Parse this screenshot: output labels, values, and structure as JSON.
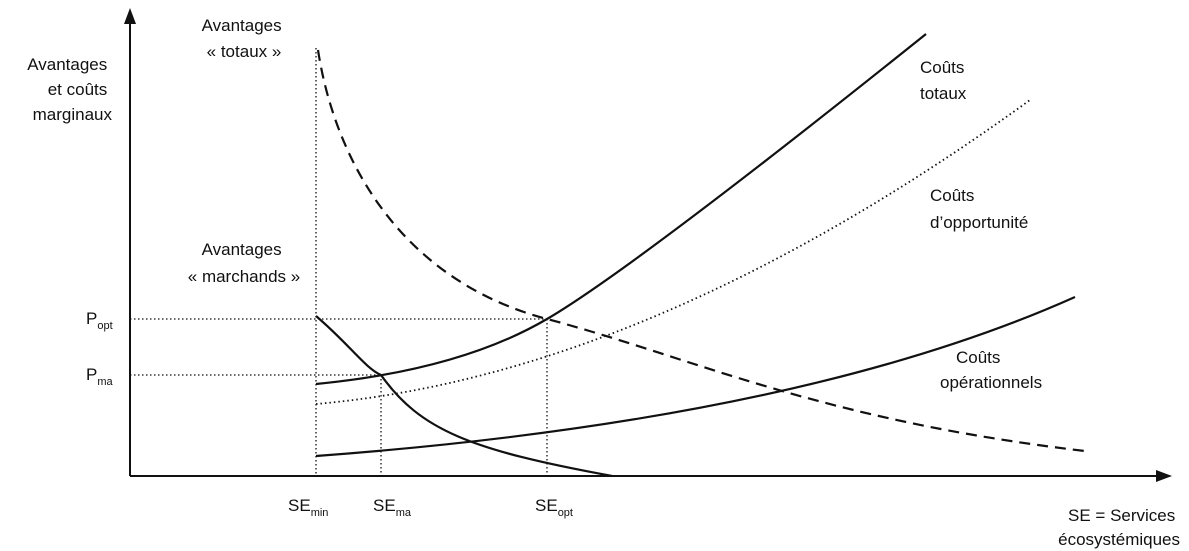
{
  "y_axis_label": [
    "Avantages",
    "et coûts",
    "marginaux"
  ],
  "x_axis_label": [
    "SE = Services",
    "écosystémiques"
  ],
  "curve_labels": {
    "avantages_totaux": [
      "Avantages",
      "« totaux »"
    ],
    "avantages_marchands": [
      "Avantages",
      "« marchands »"
    ],
    "couts_totaux": [
      "Coûts",
      "totaux"
    ],
    "couts_opportunite": [
      "Coûts",
      "d’opportunité"
    ],
    "couts_operationnels": [
      "Coûts",
      "opérationnels"
    ]
  },
  "price_labels": {
    "p_opt": {
      "base": "P",
      "sub": "opt"
    },
    "p_ma": {
      "base": "P",
      "sub": "ma"
    }
  },
  "quantity_labels": {
    "se_min": {
      "base": "SE",
      "sub": "min"
    },
    "se_ma": {
      "base": "SE",
      "sub": "ma"
    },
    "se_opt": {
      "base": "SE",
      "sub": "opt"
    }
  },
  "line_styles": {
    "avantages_totaux": "dashed",
    "avantages_marchands": "solid",
    "couts_totaux": "solid",
    "couts_opportunite": "dotted",
    "couts_operationnels": "solid"
  },
  "colors": {
    "line": "#111111",
    "background": "#ffffff"
  }
}
